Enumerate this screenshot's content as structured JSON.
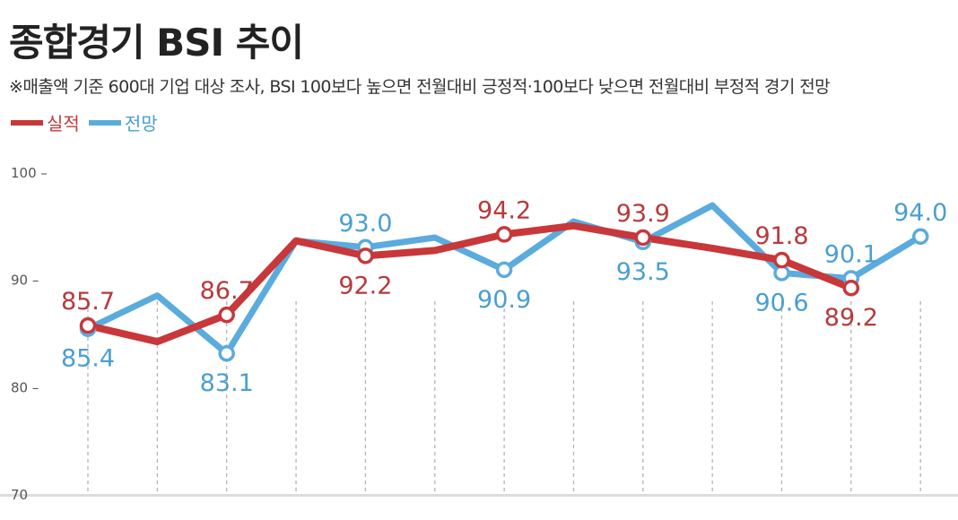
{
  "title": "종합경기 BSI 추이",
  "subtitle": "※매출액 기준 600대 기업 대상 조사, BSI 100보다 높으면 전월대비 긍정적·100보다 낮으면 전월대비 부정적 경기 전망",
  "legend": {
    "actual": "실적",
    "outlook": "전망"
  },
  "colors": {
    "actual": "#c8373a",
    "outlook": "#5aabde",
    "label_actual": "#b8393b",
    "label_outlook": "#4a9fd0"
  },
  "chart_data": {
    "type": "line",
    "categories": [
      "",
      "",
      "",
      "",
      "",
      "",
      "",
      "",
      "",
      "",
      "",
      "",
      ""
    ],
    "ylim": [
      70,
      100
    ],
    "yticks": [
      {
        "value": 70,
        "label": "70"
      },
      {
        "value": 80,
        "label": "80 –"
      },
      {
        "value": 90,
        "label": "90 –"
      },
      {
        "value": 100,
        "label": "100 –"
      }
    ],
    "series": [
      {
        "key": "actual",
        "name": "실적",
        "values": [
          85.7,
          84.2,
          86.7,
          93.6,
          92.2,
          92.7,
          94.2,
          95.0,
          93.9,
          92.9,
          91.8,
          89.2,
          null
        ],
        "labels": [
          "85.7",
          "",
          "86.7",
          "",
          "92.2",
          "",
          "94.2",
          "",
          "93.9",
          "",
          "91.8",
          "89.2",
          ""
        ],
        "markers": [
          true,
          false,
          true,
          false,
          true,
          false,
          true,
          false,
          true,
          false,
          true,
          true,
          false
        ]
      },
      {
        "key": "outlook",
        "name": "전망",
        "values": [
          85.4,
          88.5,
          83.1,
          93.6,
          93.0,
          93.9,
          90.9,
          95.4,
          93.5,
          96.9,
          90.6,
          90.1,
          94.0
        ],
        "labels": [
          "85.4",
          "",
          "83.1",
          "",
          "93.0",
          "",
          "90.9",
          "",
          "93.5",
          "",
          "90.6",
          "90.1",
          "94.0"
        ],
        "markers": [
          true,
          false,
          true,
          false,
          true,
          false,
          true,
          false,
          true,
          false,
          true,
          true,
          true
        ]
      }
    ]
  }
}
